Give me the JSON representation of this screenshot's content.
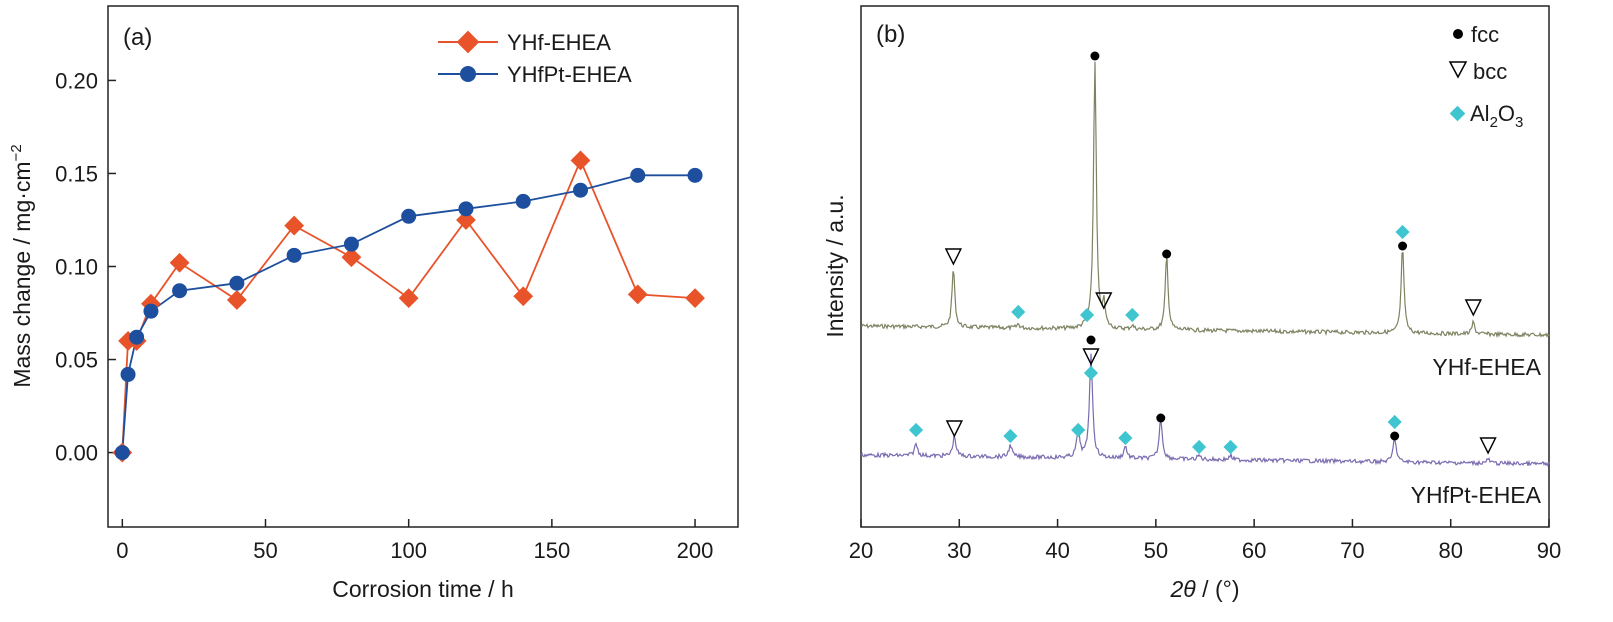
{
  "chart_data": [
    {
      "type": "line",
      "panel_label": "(a)",
      "xlabel": "Corrosion time / h",
      "ylabel": "Mass change / mg·cm",
      "ylabel_superscript": "−2",
      "xlim": [
        -5,
        215
      ],
      "ylim": [
        -0.04,
        0.24
      ],
      "xticks": [
        0,
        50,
        100,
        150,
        200
      ],
      "xtick_labels": [
        "0",
        "50",
        "100",
        "150",
        "200"
      ],
      "yticks": [
        0.0,
        0.05,
        0.1,
        0.15,
        0.2
      ],
      "ytick_labels": [
        "0.00",
        "0.05",
        "0.10",
        "0.15",
        "0.20"
      ],
      "grid": false,
      "legend_position": "top-right",
      "series": [
        {
          "name": "YHf-EHEA",
          "color": "#e8532a",
          "marker": "diamond",
          "x": [
            0,
            2,
            5,
            10,
            20,
            40,
            60,
            80,
            100,
            120,
            140,
            160,
            180,
            200
          ],
          "y": [
            0.0,
            0.06,
            0.06,
            0.08,
            0.102,
            0.082,
            0.122,
            0.105,
            0.083,
            0.125,
            0.084,
            0.157,
            0.085,
            0.083
          ]
        },
        {
          "name": "YHfPt-EHEA",
          "color": "#1d4f9e",
          "marker": "circle",
          "x": [
            0,
            2,
            5,
            10,
            20,
            40,
            60,
            80,
            100,
            120,
            140,
            160,
            180,
            200
          ],
          "y": [
            0.0,
            0.042,
            0.062,
            0.076,
            0.087,
            0.091,
            0.106,
            0.112,
            0.127,
            0.131,
            0.135,
            0.141,
            0.149,
            0.149
          ]
        }
      ]
    },
    {
      "type": "line",
      "panel_label": "(b)",
      "xlabel_symbol": "2θ",
      "xlabel_unit": " / (°)",
      "ylabel": "Intensity / a.u.",
      "xlim": [
        20,
        90
      ],
      "xticks": [
        20,
        30,
        40,
        50,
        60,
        70,
        80,
        90
      ],
      "xtick_labels": [
        "20",
        "30",
        "40",
        "50",
        "60",
        "70",
        "80",
        "90"
      ],
      "yticks_shown": false,
      "grid": false,
      "legend_position": "top-right",
      "legend": [
        {
          "marker": "filled-circle",
          "label": "fcc",
          "color": "#000000"
        },
        {
          "marker": "open-triangle-down",
          "label": "bcc",
          "color": "#000000"
        },
        {
          "marker": "diamond",
          "label_main": "Al",
          "sub1": "2",
          "mid": "O",
          "sub2": "3",
          "color": "#3ec5cf"
        }
      ],
      "series": [
        {
          "name": "YHf-EHEA",
          "color": "#7c8361",
          "baseline": 0.0,
          "peaks": [
            {
              "two_theta": 29.4,
              "intensity": 0.75,
              "phase": "bcc"
            },
            {
              "two_theta": 36.0,
              "intensity": 0.05,
              "phase": "Al2O3"
            },
            {
              "two_theta": 43.0,
              "intensity": 0.05,
              "phase": "Al2O3"
            },
            {
              "two_theta": 43.8,
              "intensity": 3.4,
              "phase": "fcc"
            },
            {
              "two_theta": 44.7,
              "intensity": 0.3,
              "phase": "bcc"
            },
            {
              "two_theta": 47.6,
              "intensity": 0.05,
              "phase": "Al2O3"
            },
            {
              "two_theta": 51.1,
              "intensity": 0.95,
              "phase": "fcc"
            },
            {
              "two_theta": 75.1,
              "intensity": 1.1,
              "phase": "fcc"
            },
            {
              "two_theta": 75.1,
              "intensity": 1.1,
              "phase": "Al2O3"
            },
            {
              "two_theta": 82.3,
              "intensity": 0.15,
              "phase": "bcc"
            }
          ]
        },
        {
          "name": "YHfPt-EHEA",
          "color": "#7a6bb0",
          "baseline": 0.0,
          "peaks": [
            {
              "two_theta": 25.6,
              "intensity": 0.15,
              "phase": "Al2O3"
            },
            {
              "two_theta": 29.5,
              "intensity": 0.25,
              "phase": "bcc"
            },
            {
              "two_theta": 35.2,
              "intensity": 0.15,
              "phase": "Al2O3"
            },
            {
              "two_theta": 42.1,
              "intensity": 0.35,
              "phase": "Al2O3"
            },
            {
              "two_theta": 43.4,
              "intensity": 1.3,
              "phase": "fcc"
            },
            {
              "two_theta": 43.4,
              "intensity": 1.3,
              "phase": "bcc"
            },
            {
              "two_theta": 43.4,
              "intensity": 1.3,
              "phase": "Al2O3"
            },
            {
              "two_theta": 46.9,
              "intensity": 0.15,
              "phase": "Al2O3"
            },
            {
              "two_theta": 50.5,
              "intensity": 0.5,
              "phase": "fcc"
            },
            {
              "two_theta": 54.4,
              "intensity": 0.05,
              "phase": "Al2O3"
            },
            {
              "two_theta": 57.6,
              "intensity": 0.05,
              "phase": "Al2O3"
            },
            {
              "two_theta": 74.3,
              "intensity": 0.3,
              "phase": "fcc"
            },
            {
              "two_theta": 74.3,
              "intensity": 0.3,
              "phase": "Al2O3"
            },
            {
              "two_theta": 83.8,
              "intensity": 0.05,
              "phase": "bcc"
            }
          ]
        }
      ]
    }
  ]
}
